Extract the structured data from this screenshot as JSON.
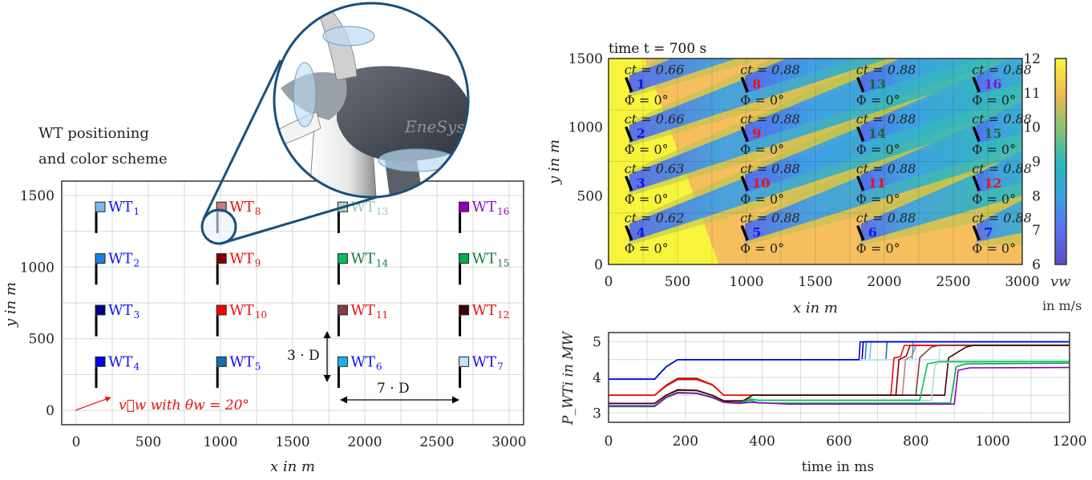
{
  "left": {
    "title_line1": "WT positioning",
    "title_line2": "and color scheme",
    "xlabel": "x in m",
    "ylabel": "y in m",
    "xlim": [
      -100,
      3100
    ],
    "ylim": [
      -100,
      1600
    ],
    "xticks": [
      0,
      500,
      1000,
      1500,
      2000,
      2500,
      3000
    ],
    "yticks": [
      0,
      500,
      1000,
      1500
    ],
    "wind_label": "v⃗w with θw = 20°",
    "dist_vertical": "3 · D",
    "dist_horizontal": "7 · D",
    "magnifier_color": "#1a4f7a",
    "logo": "EneSys",
    "turbines": [
      {
        "id": "1",
        "x": 150,
        "y": 1310,
        "marker": "#7fb8f0",
        "text": "#1010ff"
      },
      {
        "id": "2",
        "x": 150,
        "y": 950,
        "marker": "#1a7fe8",
        "text": "#1010ff"
      },
      {
        "id": "3",
        "x": 150,
        "y": 590,
        "marker": "#000080",
        "text": "#1010ff"
      },
      {
        "id": "4",
        "x": 150,
        "y": 230,
        "marker": "#0000ee",
        "text": "#1010ff"
      },
      {
        "id": "5",
        "x": 990,
        "y": 230,
        "marker": "#1570b0",
        "text": "#1010ff"
      },
      {
        "id": "6",
        "x": 1830,
        "y": 230,
        "marker": "#1ab0f0",
        "text": "#1010ff"
      },
      {
        "id": "7",
        "x": 2670,
        "y": 230,
        "marker": "#c0e4f8",
        "text": "#1010ff"
      },
      {
        "id": "8",
        "x": 990,
        "y": 1310,
        "marker": "#c08080",
        "text": "#ee1111"
      },
      {
        "id": "9",
        "x": 990,
        "y": 950,
        "marker": "#800000",
        "text": "#ee1111"
      },
      {
        "id": "10",
        "x": 990,
        "y": 590,
        "marker": "#ff0000",
        "text": "#ee1111"
      },
      {
        "id": "11",
        "x": 1830,
        "y": 590,
        "marker": "#804040",
        "text": "#ee1111"
      },
      {
        "id": "12",
        "x": 2670,
        "y": 590,
        "marker": "#400000",
        "text": "#ee1111"
      },
      {
        "id": "13",
        "x": 1830,
        "y": 1310,
        "marker": "#a8e0c8",
        "text": "#9cc8b0"
      },
      {
        "id": "14",
        "x": 1830,
        "y": 950,
        "marker": "#00c060",
        "text": "#1a7a40"
      },
      {
        "id": "15",
        "x": 2670,
        "y": 950,
        "marker": "#00b040",
        "text": "#1a7a40"
      },
      {
        "id": "16",
        "x": 2670,
        "y": 1310,
        "marker": "#9000c0",
        "text": "#9010c8"
      }
    ]
  },
  "heatmap": {
    "type": "heatmap",
    "title": "time t = 700 s",
    "xlabel": "x in m",
    "ylabel": "y in m",
    "xlim": [
      0,
      3000
    ],
    "ylim": [
      0,
      1500
    ],
    "xticks": [
      0,
      500,
      1000,
      1500,
      2000,
      2500,
      3000
    ],
    "yticks": [
      0,
      500,
      1000,
      1500
    ],
    "colorbar_label": "v_w in m/s",
    "colorbar_label_main": "vw",
    "colorbar_label_unit": "in m/s",
    "clim": [
      6,
      12
    ],
    "cticks": [
      6,
      7,
      8,
      9,
      10,
      11,
      12
    ],
    "wind_direction_deg": 20,
    "turbines": [
      {
        "id": "1",
        "x": 150,
        "y": 1310,
        "ct": "ct = 0.66",
        "phi": "Φ = 0°",
        "color": "#1515ee"
      },
      {
        "id": "2",
        "x": 150,
        "y": 950,
        "ct": "ct = 0.66",
        "phi": "Φ = 0°",
        "color": "#1515ee"
      },
      {
        "id": "3",
        "x": 150,
        "y": 590,
        "ct": "ct = 0.63",
        "phi": "Φ = 0°",
        "color": "#1515ee"
      },
      {
        "id": "4",
        "x": 150,
        "y": 230,
        "ct": "ct = 0.62",
        "phi": "Φ = 0°",
        "color": "#1515ee"
      },
      {
        "id": "8",
        "x": 990,
        "y": 1310,
        "ct": "ct = 0.88",
        "phi": "Φ = 0°",
        "color": "#ee1111"
      },
      {
        "id": "9",
        "x": 990,
        "y": 950,
        "ct": "ct = 0.88",
        "phi": "Φ = 0°",
        "color": "#ee1111"
      },
      {
        "id": "10",
        "x": 990,
        "y": 590,
        "ct": "ct = 0.88",
        "phi": "Φ = 0°",
        "color": "#ee1111"
      },
      {
        "id": "5",
        "x": 990,
        "y": 230,
        "ct": "ct = 0.88",
        "phi": "Φ = 0°",
        "color": "#1515ee"
      },
      {
        "id": "13",
        "x": 1830,
        "y": 1310,
        "ct": "ct = 0.88",
        "phi": "Φ = 0°",
        "color": "#1a6a30"
      },
      {
        "id": "14",
        "x": 1830,
        "y": 950,
        "ct": "ct = 0.88",
        "phi": "Φ = 0°",
        "color": "#1a6a30"
      },
      {
        "id": "11",
        "x": 1830,
        "y": 590,
        "ct": "ct = 0.88",
        "phi": "Φ = 0°",
        "color": "#ee1111"
      },
      {
        "id": "6",
        "x": 1830,
        "y": 230,
        "ct": "ct = 0.88",
        "phi": "Φ = 0°",
        "color": "#1515ee"
      },
      {
        "id": "16",
        "x": 2670,
        "y": 1310,
        "ct": "ct = 0.88",
        "phi": "Φ = 0°",
        "color": "#9010c8"
      },
      {
        "id": "15",
        "x": 2670,
        "y": 950,
        "ct": "ct = 0.88",
        "phi": "Φ = 0°",
        "color": "#1a6a30"
      },
      {
        "id": "12",
        "x": 2670,
        "y": 590,
        "ct": "ct = 0.88",
        "phi": "Φ = 0°",
        "color": "#ee1111"
      },
      {
        "id": "7",
        "x": 2670,
        "y": 230,
        "ct": "ct = 0.88",
        "phi": "Φ = 0°",
        "color": "#1515ee"
      }
    ]
  },
  "chart_data": {
    "type": "line",
    "xlabel": "time in ms",
    "ylabel": "P_WTi in MW",
    "xlim": [
      0,
      1200
    ],
    "ylim": [
      2.74,
      5.26
    ],
    "xticks": [
      0,
      200,
      400,
      600,
      800,
      1000,
      1200
    ],
    "yticks": [
      3,
      4,
      5
    ],
    "grid": true,
    "series": [
      {
        "color": "#7fb8f0",
        "points": [
          [
            0,
            3.95
          ],
          [
            120,
            3.95
          ],
          [
            150,
            4.3
          ],
          [
            180,
            4.5
          ],
          [
            680,
            4.5
          ],
          [
            683,
            5.0
          ],
          [
            1200,
            5.0
          ]
        ]
      },
      {
        "color": "#1a7fe8",
        "points": [
          [
            0,
            3.95
          ],
          [
            120,
            3.95
          ],
          [
            150,
            4.3
          ],
          [
            180,
            4.5
          ],
          [
            668,
            4.5
          ],
          [
            671,
            5.0
          ],
          [
            1200,
            5.0
          ]
        ]
      },
      {
        "color": "#000080",
        "points": [
          [
            0,
            3.95
          ],
          [
            120,
            3.95
          ],
          [
            150,
            4.3
          ],
          [
            180,
            4.5
          ],
          [
            660,
            4.5
          ],
          [
            663,
            5.0
          ],
          [
            1200,
            5.0
          ]
        ]
      },
      {
        "color": "#1570b0",
        "points": [
          [
            0,
            3.95
          ],
          [
            120,
            3.95
          ],
          [
            150,
            4.3
          ],
          [
            180,
            4.5
          ],
          [
            722,
            4.5
          ],
          [
            725,
            5.0
          ],
          [
            1200,
            5.0
          ]
        ]
      },
      {
        "color": "#1ab0f0",
        "points": [
          [
            0,
            3.95
          ],
          [
            120,
            3.95
          ],
          [
            150,
            4.3
          ],
          [
            180,
            4.5
          ],
          [
            790,
            4.5
          ],
          [
            793,
            5.0
          ],
          [
            1200,
            5.0
          ]
        ]
      },
      {
        "color": "#c0e4f8",
        "points": [
          [
            0,
            3.95
          ],
          [
            120,
            3.95
          ],
          [
            150,
            4.3
          ],
          [
            180,
            4.5
          ],
          [
            860,
            4.5
          ],
          [
            863,
            4.92
          ],
          [
            1200,
            4.92
          ]
        ]
      },
      {
        "color": "#0000ee",
        "points": [
          [
            0,
            3.95
          ],
          [
            120,
            3.95
          ],
          [
            150,
            4.3
          ],
          [
            180,
            4.5
          ],
          [
            652,
            4.5
          ],
          [
            655,
            5.0
          ],
          [
            1200,
            5.0
          ]
        ]
      },
      {
        "color": "#c08080",
        "points": [
          [
            0,
            3.5
          ],
          [
            120,
            3.5
          ],
          [
            150,
            3.75
          ],
          [
            180,
            3.93
          ],
          [
            230,
            3.93
          ],
          [
            270,
            3.78
          ],
          [
            300,
            3.5
          ],
          [
            765,
            3.5
          ],
          [
            773,
            4.5
          ],
          [
            790,
            4.6
          ],
          [
            800,
            4.9
          ],
          [
            1200,
            4.9
          ]
        ]
      },
      {
        "color": "#800000",
        "points": [
          [
            0,
            3.5
          ],
          [
            120,
            3.5
          ],
          [
            150,
            3.78
          ],
          [
            180,
            3.97
          ],
          [
            230,
            3.97
          ],
          [
            270,
            3.8
          ],
          [
            300,
            3.5
          ],
          [
            748,
            3.5
          ],
          [
            756,
            4.5
          ],
          [
            775,
            4.6
          ],
          [
            785,
            4.9
          ],
          [
            1200,
            4.9
          ]
        ]
      },
      {
        "color": "#ff0000",
        "points": [
          [
            0,
            3.5
          ],
          [
            120,
            3.5
          ],
          [
            150,
            3.76
          ],
          [
            180,
            3.95
          ],
          [
            230,
            3.95
          ],
          [
            270,
            3.8
          ],
          [
            300,
            3.5
          ],
          [
            735,
            3.5
          ],
          [
            743,
            4.55
          ],
          [
            760,
            4.58
          ],
          [
            770,
            4.9
          ],
          [
            1200,
            4.9
          ]
        ]
      },
      {
        "color": "#804040",
        "points": [
          [
            0,
            3.27
          ],
          [
            120,
            3.27
          ],
          [
            150,
            3.5
          ],
          [
            180,
            3.66
          ],
          [
            230,
            3.64
          ],
          [
            270,
            3.5
          ],
          [
            300,
            3.35
          ],
          [
            350,
            3.35
          ],
          [
            375,
            3.5
          ],
          [
            800,
            3.5
          ],
          [
            810,
            4.55
          ],
          [
            840,
            4.85
          ],
          [
            860,
            4.9
          ],
          [
            1200,
            4.9
          ]
        ]
      },
      {
        "color": "#400000",
        "points": [
          [
            0,
            3.27
          ],
          [
            120,
            3.27
          ],
          [
            150,
            3.5
          ],
          [
            180,
            3.64
          ],
          [
            230,
            3.63
          ],
          [
            270,
            3.5
          ],
          [
            300,
            3.33
          ],
          [
            350,
            3.33
          ],
          [
            375,
            3.5
          ],
          [
            875,
            3.5
          ],
          [
            885,
            4.55
          ],
          [
            930,
            4.85
          ],
          [
            950,
            4.9
          ],
          [
            1200,
            4.9
          ]
        ]
      },
      {
        "color": "#a8e0c8",
        "points": [
          [
            0,
            3.2
          ],
          [
            120,
            3.2
          ],
          [
            150,
            3.45
          ],
          [
            180,
            3.58
          ],
          [
            230,
            3.56
          ],
          [
            270,
            3.45
          ],
          [
            300,
            3.3
          ],
          [
            340,
            3.28
          ],
          [
            370,
            3.38
          ],
          [
            390,
            3.35
          ],
          [
            840,
            3.35
          ],
          [
            850,
            4.38
          ],
          [
            870,
            4.42
          ],
          [
            1200,
            4.43
          ]
        ]
      },
      {
        "color": "#00c060",
        "points": [
          [
            0,
            3.2
          ],
          [
            120,
            3.2
          ],
          [
            150,
            3.45
          ],
          [
            180,
            3.58
          ],
          [
            230,
            3.56
          ],
          [
            270,
            3.45
          ],
          [
            300,
            3.3
          ],
          [
            340,
            3.28
          ],
          [
            370,
            3.4
          ],
          [
            390,
            3.36
          ],
          [
            810,
            3.36
          ],
          [
            830,
            4.38
          ],
          [
            860,
            4.45
          ],
          [
            1200,
            4.45
          ]
        ]
      },
      {
        "color": "#00b040",
        "points": [
          [
            0,
            3.18
          ],
          [
            120,
            3.18
          ],
          [
            150,
            3.43
          ],
          [
            180,
            3.56
          ],
          [
            230,
            3.55
          ],
          [
            270,
            3.43
          ],
          [
            300,
            3.3
          ],
          [
            340,
            3.28
          ],
          [
            370,
            3.36
          ],
          [
            390,
            3.28
          ],
          [
            890,
            3.28
          ],
          [
            905,
            4.3
          ],
          [
            930,
            4.38
          ],
          [
            1200,
            4.4
          ]
        ]
      },
      {
        "color": "#9000c0",
        "points": [
          [
            0,
            3.2
          ],
          [
            120,
            3.2
          ],
          [
            150,
            3.44
          ],
          [
            180,
            3.57
          ],
          [
            230,
            3.55
          ],
          [
            270,
            3.44
          ],
          [
            300,
            3.3
          ],
          [
            340,
            3.27
          ],
          [
            370,
            3.3
          ],
          [
            470,
            3.25
          ],
          [
            900,
            3.25
          ],
          [
            910,
            4.2
          ],
          [
            940,
            4.27
          ],
          [
            1200,
            4.28
          ]
        ]
      }
    ]
  }
}
